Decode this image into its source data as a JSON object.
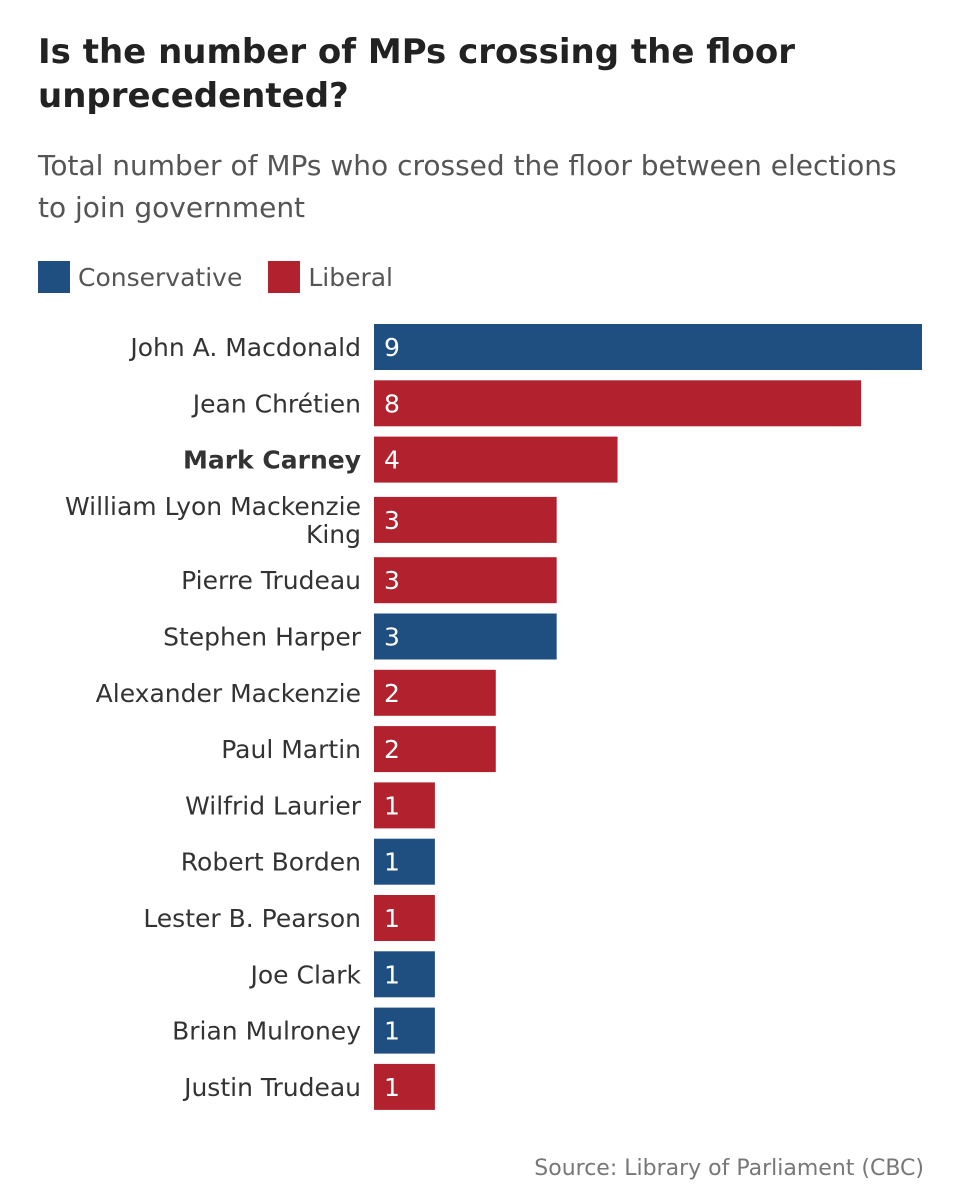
{
  "title": "Is the number of MPs crossing the floor unprecedented?",
  "subtitle": "Total number of MPs who crossed the floor between elections to join government",
  "source": "Source: Library of Parliament (CBC)",
  "colors": {
    "Conservative": "#1f4e80",
    "Liberal": "#b1222e"
  },
  "chart_data": {
    "type": "bar",
    "orientation": "horizontal",
    "title": "Is the number of MPs crossing the floor unprecedented?",
    "subtitle": "Total number of MPs who crossed the floor between elections to join government",
    "xlabel": "",
    "ylabel": "",
    "grid": false,
    "legend_position": "top-left",
    "legend": [
      "Conservative",
      "Liberal"
    ],
    "categories": [
      "John A. Macdonald",
      "Jean Chrétien",
      "Mark Carney",
      "William Lyon Mackenzie King",
      "Pierre Trudeau",
      "Stephen Harper",
      "Alexander Mackenzie",
      "Paul Martin",
      "Wilfrid Laurier",
      "Robert Borden",
      "Lester B. Pearson",
      "Joe Clark",
      "Brian Mulroney",
      "Justin Trudeau"
    ],
    "label_lines": [
      [
        "John A. Macdonald"
      ],
      [
        "Jean Chrétien"
      ],
      [
        "Mark Carney"
      ],
      [
        "William Lyon Mackenzie",
        "King"
      ],
      [
        "Pierre Trudeau"
      ],
      [
        "Stephen Harper"
      ],
      [
        "Alexander Mackenzie"
      ],
      [
        "Paul Martin"
      ],
      [
        "Wilfrid Laurier"
      ],
      [
        "Robert Borden"
      ],
      [
        "Lester B. Pearson"
      ],
      [
        "Joe Clark"
      ],
      [
        "Brian Mulroney"
      ],
      [
        "Justin Trudeau"
      ]
    ],
    "values": [
      9,
      8,
      4,
      3,
      3,
      3,
      2,
      2,
      1,
      1,
      1,
      1,
      1,
      1
    ],
    "party": [
      "Conservative",
      "Liberal",
      "Liberal",
      "Liberal",
      "Liberal",
      "Conservative",
      "Liberal",
      "Liberal",
      "Liberal",
      "Conservative",
      "Liberal",
      "Conservative",
      "Conservative",
      "Liberal"
    ],
    "highlight": "Mark Carney",
    "xlim": [
      0,
      9
    ]
  }
}
